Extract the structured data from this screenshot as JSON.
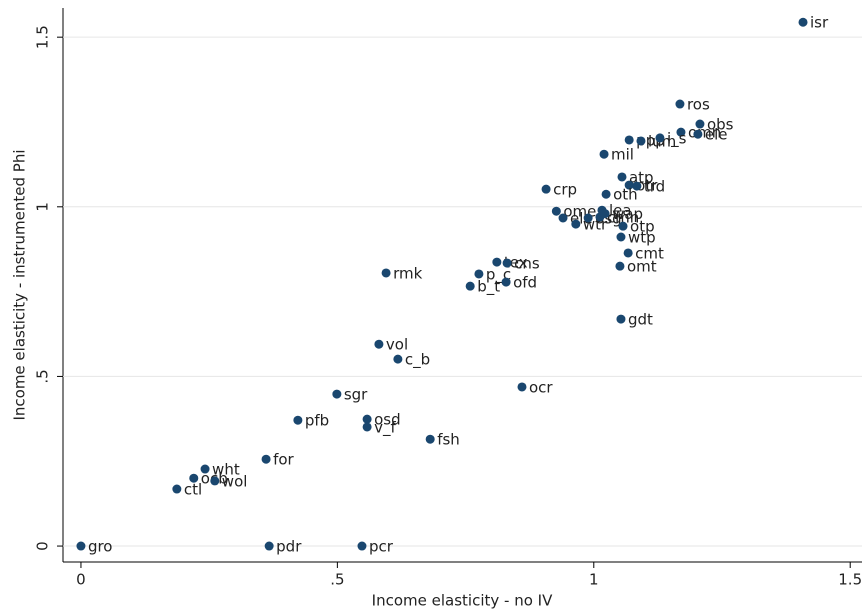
{
  "chart_data": {
    "type": "scatter",
    "x_label": "Income elasticity - no IV",
    "y_label": "Income elasticity - instrumented Phi",
    "color": "#1a476f",
    "grid": true,
    "xlim": [
      -0.035,
      1.523
    ],
    "ylim": [
      -0.047,
      1.586
    ],
    "xticks": [
      0,
      {
        "value": 0.5,
        "label": ".5"
      },
      1,
      1.5
    ],
    "yticks": [
      0,
      {
        "value": 0.5,
        "label": ".5"
      },
      1,
      1.5
    ],
    "labels": [
      "isr",
      "ros",
      "obs",
      "omn",
      "ele",
      "ppp",
      "lum",
      "i_s",
      "mil",
      "atp",
      "otr",
      "trd",
      "crp",
      "oth",
      "ome",
      "ele",
      "wtr",
      "osg",
      "cmn",
      "lea",
      "wap",
      "otp",
      "wtp",
      "cmt",
      "omt",
      "tex",
      "cns",
      "rmk",
      "p_c",
      "ofd",
      "b_t",
      "gdt",
      "vol",
      "c_b",
      "ocr",
      "sgr",
      "pfb",
      "osd",
      "v_f",
      "fsh",
      "for",
      "wht",
      "ocb",
      "wol",
      "ctl",
      "gro",
      "pdr",
      "pcr"
    ],
    "x": [
      1.408,
      1.168,
      1.207,
      1.17,
      1.203,
      1.069,
      1.092,
      1.129,
      1.02,
      1.055,
      1.069,
      1.084,
      0.907,
      1.024,
      0.927,
      0.94,
      0.965,
      0.989,
      1.012,
      1.016,
      1.022,
      1.057,
      1.053,
      1.067,
      1.051,
      0.811,
      0.831,
      0.595,
      0.776,
      0.829,
      0.759,
      1.053,
      0.581,
      0.618,
      0.86,
      0.499,
      0.423,
      0.558,
      0.558,
      0.681,
      0.361,
      0.242,
      0.22,
      0.261,
      0.187,
      0,
      0.367,
      0.548
    ],
    "y": [
      1.544,
      1.303,
      1.244,
      1.22,
      1.214,
      1.197,
      1.194,
      1.203,
      1.155,
      1.088,
      1.064,
      1.061,
      1.052,
      1.037,
      0.987,
      0.967,
      0.949,
      0.967,
      0.97,
      0.99,
      0.98,
      0.943,
      0.911,
      0.864,
      0.825,
      0.837,
      0.834,
      0.805,
      0.802,
      0.778,
      0.766,
      0.669,
      0.595,
      0.551,
      0.469,
      0.448,
      0.371,
      0.374,
      0.351,
      0.315,
      0.256,
      0.227,
      0.2,
      0.192,
      0.168,
      0,
      0,
      0
    ]
  }
}
